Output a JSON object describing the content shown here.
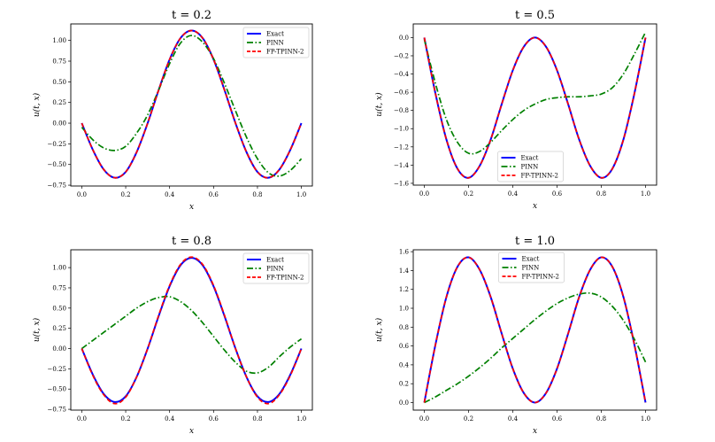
{
  "colors": {
    "exact": "#0000ff",
    "pinn": "#008000",
    "fptpinn": "#ff0000"
  },
  "chart_data": [
    {
      "type": "line",
      "title": "t = 0.2",
      "xlabel": "x",
      "ylabel": "u(t, x)",
      "xlim": [
        -0.05,
        1.05
      ],
      "ylim": [
        -0.76,
        1.2
      ],
      "xticks": [
        "0.0",
        "0.2",
        "0.4",
        "0.6",
        "0.8",
        "1.0"
      ],
      "yticks": [
        "−0.75",
        "−0.50",
        "−0.25",
        "0.00",
        "0.25",
        "0.50",
        "0.75",
        "1.00"
      ],
      "legend_position": "upper-right",
      "x": [
        0,
        0.05,
        0.1,
        0.15,
        0.2,
        0.25,
        0.3,
        0.35,
        0.4,
        0.45,
        0.5,
        0.55,
        0.6,
        0.65,
        0.7,
        0.75,
        0.8,
        0.85,
        0.9,
        0.95,
        1.0
      ],
      "series": [
        {
          "name": "Exact",
          "style": "solid",
          "values": [
            0,
            -0.32,
            -0.56,
            -0.66,
            -0.59,
            -0.35,
            0.0,
            0.4,
            0.77,
            1.03,
            1.12,
            1.03,
            0.77,
            0.4,
            0.0,
            -0.35,
            -0.59,
            -0.66,
            -0.56,
            -0.32,
            0
          ]
        },
        {
          "name": "PINN",
          "style": "dashdot",
          "values": [
            -0.05,
            -0.2,
            -0.3,
            -0.33,
            -0.28,
            -0.12,
            0.1,
            0.4,
            0.72,
            0.97,
            1.06,
            0.98,
            0.78,
            0.48,
            0.15,
            -0.17,
            -0.43,
            -0.6,
            -0.64,
            -0.57,
            -0.43
          ]
        },
        {
          "name": "FP-TPINN-2",
          "style": "dashed",
          "values": [
            0,
            -0.32,
            -0.56,
            -0.66,
            -0.59,
            -0.35,
            0.0,
            0.4,
            0.77,
            1.03,
            1.12,
            1.03,
            0.77,
            0.4,
            0.0,
            -0.35,
            -0.59,
            -0.66,
            -0.56,
            -0.32,
            0
          ]
        }
      ]
    },
    {
      "type": "line",
      "title": "t = 0.5",
      "xlabel": "x",
      "ylabel": "u(t, x)",
      "xlim": [
        -0.05,
        1.05
      ],
      "ylim": [
        -1.62,
        0.15
      ],
      "xticks": [
        "0.0",
        "0.2",
        "0.4",
        "0.6",
        "0.8",
        "1.0"
      ],
      "yticks": [
        "−1.6",
        "−1.4",
        "−1.2",
        "−1.0",
        "−0.8",
        "−0.6",
        "−0.4",
        "−0.2",
        "0.0"
      ],
      "legend_position": "lower-center",
      "x": [
        0,
        0.05,
        0.1,
        0.15,
        0.2,
        0.25,
        0.3,
        0.35,
        0.4,
        0.45,
        0.5,
        0.55,
        0.6,
        0.65,
        0.7,
        0.75,
        0.8,
        0.85,
        0.9,
        0.95,
        1.0
      ],
      "series": [
        {
          "name": "Exact",
          "style": "solid",
          "values": [
            0,
            -0.61,
            -1.12,
            -1.44,
            -1.54,
            -1.41,
            -1.12,
            -0.73,
            -0.36,
            -0.1,
            0,
            -0.1,
            -0.36,
            -0.73,
            -1.12,
            -1.41,
            -1.54,
            -1.44,
            -1.12,
            -0.61,
            0
          ]
        },
        {
          "name": "PINN",
          "style": "dashdot",
          "values": [
            -0.02,
            -0.5,
            -0.9,
            -1.15,
            -1.27,
            -1.25,
            -1.15,
            -1.02,
            -0.9,
            -0.8,
            -0.73,
            -0.68,
            -0.66,
            -0.65,
            -0.65,
            -0.64,
            -0.62,
            -0.55,
            -0.4,
            -0.18,
            0.06
          ]
        },
        {
          "name": "FP-TPINN-2",
          "style": "dashed",
          "values": [
            0,
            -0.61,
            -1.12,
            -1.44,
            -1.54,
            -1.41,
            -1.12,
            -0.73,
            -0.36,
            -0.1,
            0,
            -0.1,
            -0.36,
            -0.73,
            -1.12,
            -1.41,
            -1.54,
            -1.44,
            -1.12,
            -0.61,
            0
          ]
        }
      ]
    },
    {
      "type": "line",
      "title": "t = 0.8",
      "xlabel": "x",
      "ylabel": "u(t, x)",
      "xlim": [
        -0.05,
        1.05
      ],
      "ylim": [
        -0.76,
        1.22
      ],
      "xticks": [
        "0.0",
        "0.2",
        "0.4",
        "0.6",
        "0.8",
        "1.0"
      ],
      "yticks": [
        "−0.75",
        "−0.50",
        "−0.25",
        "0.00",
        "0.25",
        "0.50",
        "0.75",
        "1.00"
      ],
      "legend_position": "upper-right",
      "x": [
        0,
        0.05,
        0.1,
        0.15,
        0.2,
        0.25,
        0.3,
        0.35,
        0.4,
        0.45,
        0.5,
        0.55,
        0.6,
        0.65,
        0.7,
        0.75,
        0.8,
        0.85,
        0.9,
        0.95,
        1.0
      ],
      "series": [
        {
          "name": "Exact",
          "style": "solid",
          "values": [
            0,
            -0.32,
            -0.56,
            -0.66,
            -0.59,
            -0.35,
            0.0,
            0.4,
            0.77,
            1.03,
            1.12,
            1.03,
            0.77,
            0.4,
            0.0,
            -0.35,
            -0.59,
            -0.66,
            -0.56,
            -0.32,
            0
          ]
        },
        {
          "name": "PINN",
          "style": "dashdot",
          "values": [
            0,
            0.1,
            0.2,
            0.3,
            0.4,
            0.5,
            0.58,
            0.63,
            0.64,
            0.58,
            0.47,
            0.32,
            0.15,
            -0.02,
            -0.17,
            -0.28,
            -0.3,
            -0.23,
            -0.1,
            0.02,
            0.12
          ]
        },
        {
          "name": "FP-TPINN-2",
          "style": "dashed",
          "values": [
            0,
            -0.33,
            -0.57,
            -0.68,
            -0.6,
            -0.35,
            0.0,
            0.41,
            0.78,
            1.04,
            1.13,
            1.04,
            0.78,
            0.41,
            0.0,
            -0.35,
            -0.6,
            -0.68,
            -0.57,
            -0.33,
            0
          ]
        }
      ]
    },
    {
      "type": "line",
      "title": "t = 1.0",
      "xlabel": "x",
      "ylabel": "u(t, x)",
      "xlim": [
        -0.05,
        1.05
      ],
      "ylim": [
        -0.08,
        1.62
      ],
      "xticks": [
        "0.0",
        "0.2",
        "0.4",
        "0.6",
        "0.8",
        "1.0"
      ],
      "yticks": [
        "0.0",
        "0.2",
        "0.4",
        "0.6",
        "0.8",
        "1.0",
        "1.2",
        "1.4",
        "1.6"
      ],
      "legend_position": "upper-center",
      "x": [
        0,
        0.05,
        0.1,
        0.15,
        0.2,
        0.25,
        0.3,
        0.35,
        0.4,
        0.45,
        0.5,
        0.55,
        0.6,
        0.65,
        0.7,
        0.75,
        0.8,
        0.85,
        0.9,
        0.95,
        1.0
      ],
      "series": [
        {
          "name": "Exact",
          "style": "solid",
          "values": [
            0,
            0.61,
            1.12,
            1.44,
            1.54,
            1.41,
            1.12,
            0.73,
            0.36,
            0.1,
            0,
            0.1,
            0.36,
            0.73,
            1.12,
            1.41,
            1.54,
            1.44,
            1.12,
            0.61,
            0
          ]
        },
        {
          "name": "PINN",
          "style": "dashdot",
          "values": [
            0,
            0.06,
            0.13,
            0.2,
            0.28,
            0.37,
            0.47,
            0.58,
            0.68,
            0.78,
            0.88,
            0.97,
            1.05,
            1.11,
            1.15,
            1.16,
            1.12,
            1.02,
            0.87,
            0.67,
            0.43
          ]
        },
        {
          "name": "FP-TPINN-2",
          "style": "dashed",
          "values": [
            0,
            0.61,
            1.12,
            1.44,
            1.54,
            1.41,
            1.12,
            0.73,
            0.36,
            0.1,
            0,
            0.1,
            0.36,
            0.73,
            1.12,
            1.41,
            1.54,
            1.44,
            1.12,
            0.61,
            0
          ]
        }
      ]
    }
  ]
}
